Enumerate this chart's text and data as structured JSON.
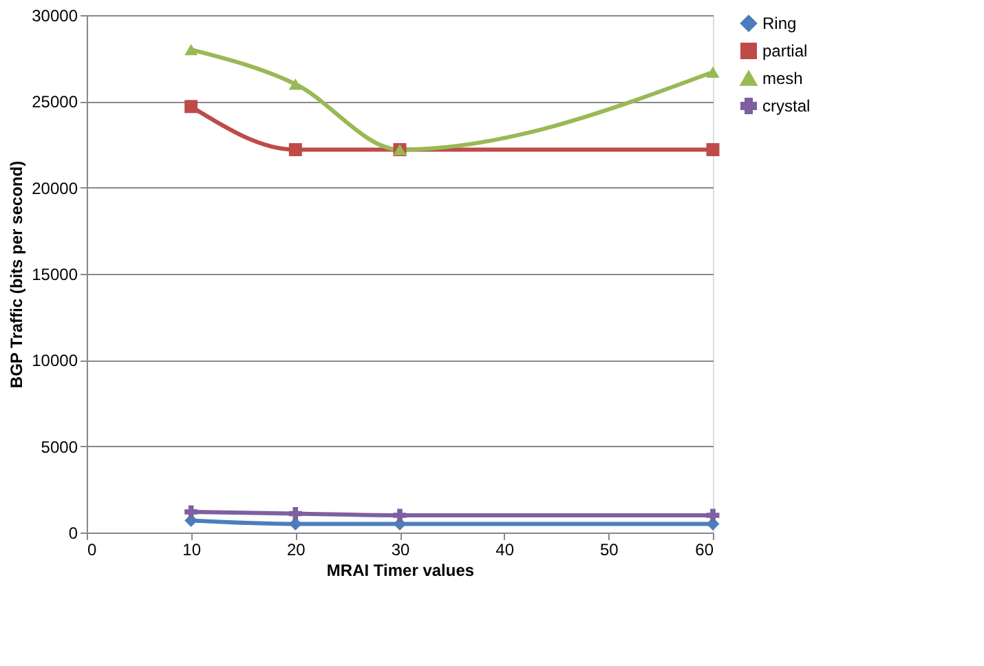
{
  "chart_data": {
    "type": "line",
    "xlabel": "MRAI Timer values",
    "ylabel": "BGP Traffic (bits per second)",
    "x": [
      10,
      20,
      30,
      60
    ],
    "xlim": [
      0,
      60
    ],
    "xticks": [
      0,
      10,
      20,
      30,
      40,
      50,
      60
    ],
    "ylim": [
      0,
      30000
    ],
    "yticks": [
      0,
      5000,
      10000,
      15000,
      20000,
      25000,
      30000
    ],
    "grid": "y",
    "legend": "right",
    "series": [
      {
        "name": "Ring",
        "color": "#4a7ebb",
        "marker": "diamond",
        "values": [
          700,
          500,
          500,
          500
        ]
      },
      {
        "name": "partial",
        "color": "#be4b48",
        "marker": "square",
        "values": [
          24700,
          22200,
          22200,
          22200
        ]
      },
      {
        "name": "mesh",
        "color": "#98b954",
        "marker": "triangle",
        "values": [
          28000,
          26000,
          22200,
          26700
        ]
      },
      {
        "name": "crystal",
        "color": "#7d60a0",
        "marker": "cross",
        "values": [
          1200,
          1100,
          1000,
          1000
        ]
      }
    ]
  }
}
